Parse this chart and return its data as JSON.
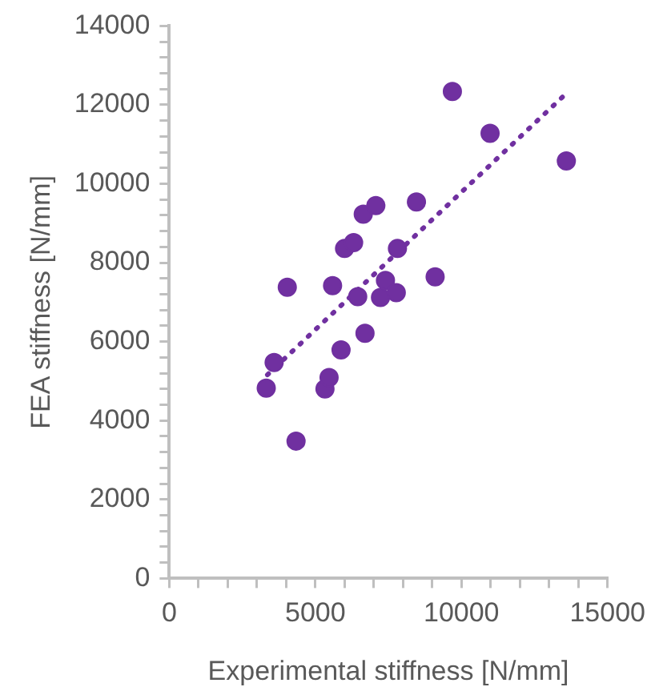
{
  "chart_data": {
    "type": "scatter",
    "xlabel": "Experimental stiffness [N/mm]",
    "ylabel": "FEA stiffness [N/mm]",
    "xlim": [
      0,
      15000
    ],
    "ylim": [
      0,
      14000
    ],
    "xticks": [
      0,
      {
        "value": 1000,
        "label": null
      },
      {
        "value": 2000,
        "label": null
      },
      {
        "value": 3000,
        "label": null
      },
      {
        "value": 4000,
        "label": null
      },
      5000,
      {
        "value": 6000,
        "label": null
      },
      {
        "value": 7000,
        "label": null
      },
      {
        "value": 8000,
        "label": null
      },
      {
        "value": 9000,
        "label": null
      },
      10000,
      {
        "value": 11000,
        "label": null
      },
      {
        "value": 12000,
        "label": null
      },
      {
        "value": 13000,
        "label": null
      },
      {
        "value": 14000,
        "label": null
      },
      15000
    ],
    "yticks": [
      0,
      {
        "value": 400,
        "label": null
      },
      {
        "value": 800,
        "label": null
      },
      {
        "value": 1200,
        "label": null
      },
      {
        "value": 1600,
        "label": null
      },
      2000,
      {
        "value": 2400,
        "label": null
      },
      {
        "value": 2800,
        "label": null
      },
      {
        "value": 3200,
        "label": null
      },
      {
        "value": 3600,
        "label": null
      },
      4000,
      {
        "value": 4400,
        "label": null
      },
      {
        "value": 4800,
        "label": null
      },
      {
        "value": 5200,
        "label": null
      },
      {
        "value": 5600,
        "label": null
      },
      6000,
      {
        "value": 6400,
        "label": null
      },
      {
        "value": 6800,
        "label": null
      },
      {
        "value": 7200,
        "label": null
      },
      {
        "value": 7600,
        "label": null
      },
      8000,
      {
        "value": 8400,
        "label": null
      },
      {
        "value": 8800,
        "label": null
      },
      {
        "value": 9200,
        "label": null
      },
      {
        "value": 9600,
        "label": null
      },
      10000,
      {
        "value": 10400,
        "label": null
      },
      {
        "value": 10800,
        "label": null
      },
      {
        "value": 11200,
        "label": null
      },
      {
        "value": 11600,
        "label": null
      },
      12000,
      {
        "value": 12400,
        "label": null
      },
      {
        "value": 12800,
        "label": null
      },
      {
        "value": 13200,
        "label": null
      },
      {
        "value": 13600,
        "label": null
      },
      14000
    ],
    "grid": false,
    "legend": false,
    "marker": "circle",
    "series": [
      {
        "color": "#7030a0",
        "x": [
          3320,
          3590,
          4040,
          4340,
          5330,
          5470,
          5590,
          5880,
          6000,
          6310,
          6450,
          6640,
          6700,
          7070,
          7230,
          7400,
          7770,
          7810,
          8460,
          9100,
          9690,
          10980,
          13590
        ],
        "values": [
          4820,
          5470,
          7380,
          3480,
          4800,
          5090,
          7420,
          5790,
          8360,
          8510,
          7140,
          9230,
          6210,
          9450,
          7120,
          7550,
          7240,
          8360,
          9540,
          7640,
          12340,
          11280,
          10580
        ]
      },
      {
        "type": "line",
        "color": "#7030a0",
        "marker": "none",
        "line_style": "dotted",
        "x": [
          3360,
          13460
        ],
        "values": [
          5160,
          12200
        ]
      }
    ]
  }
}
